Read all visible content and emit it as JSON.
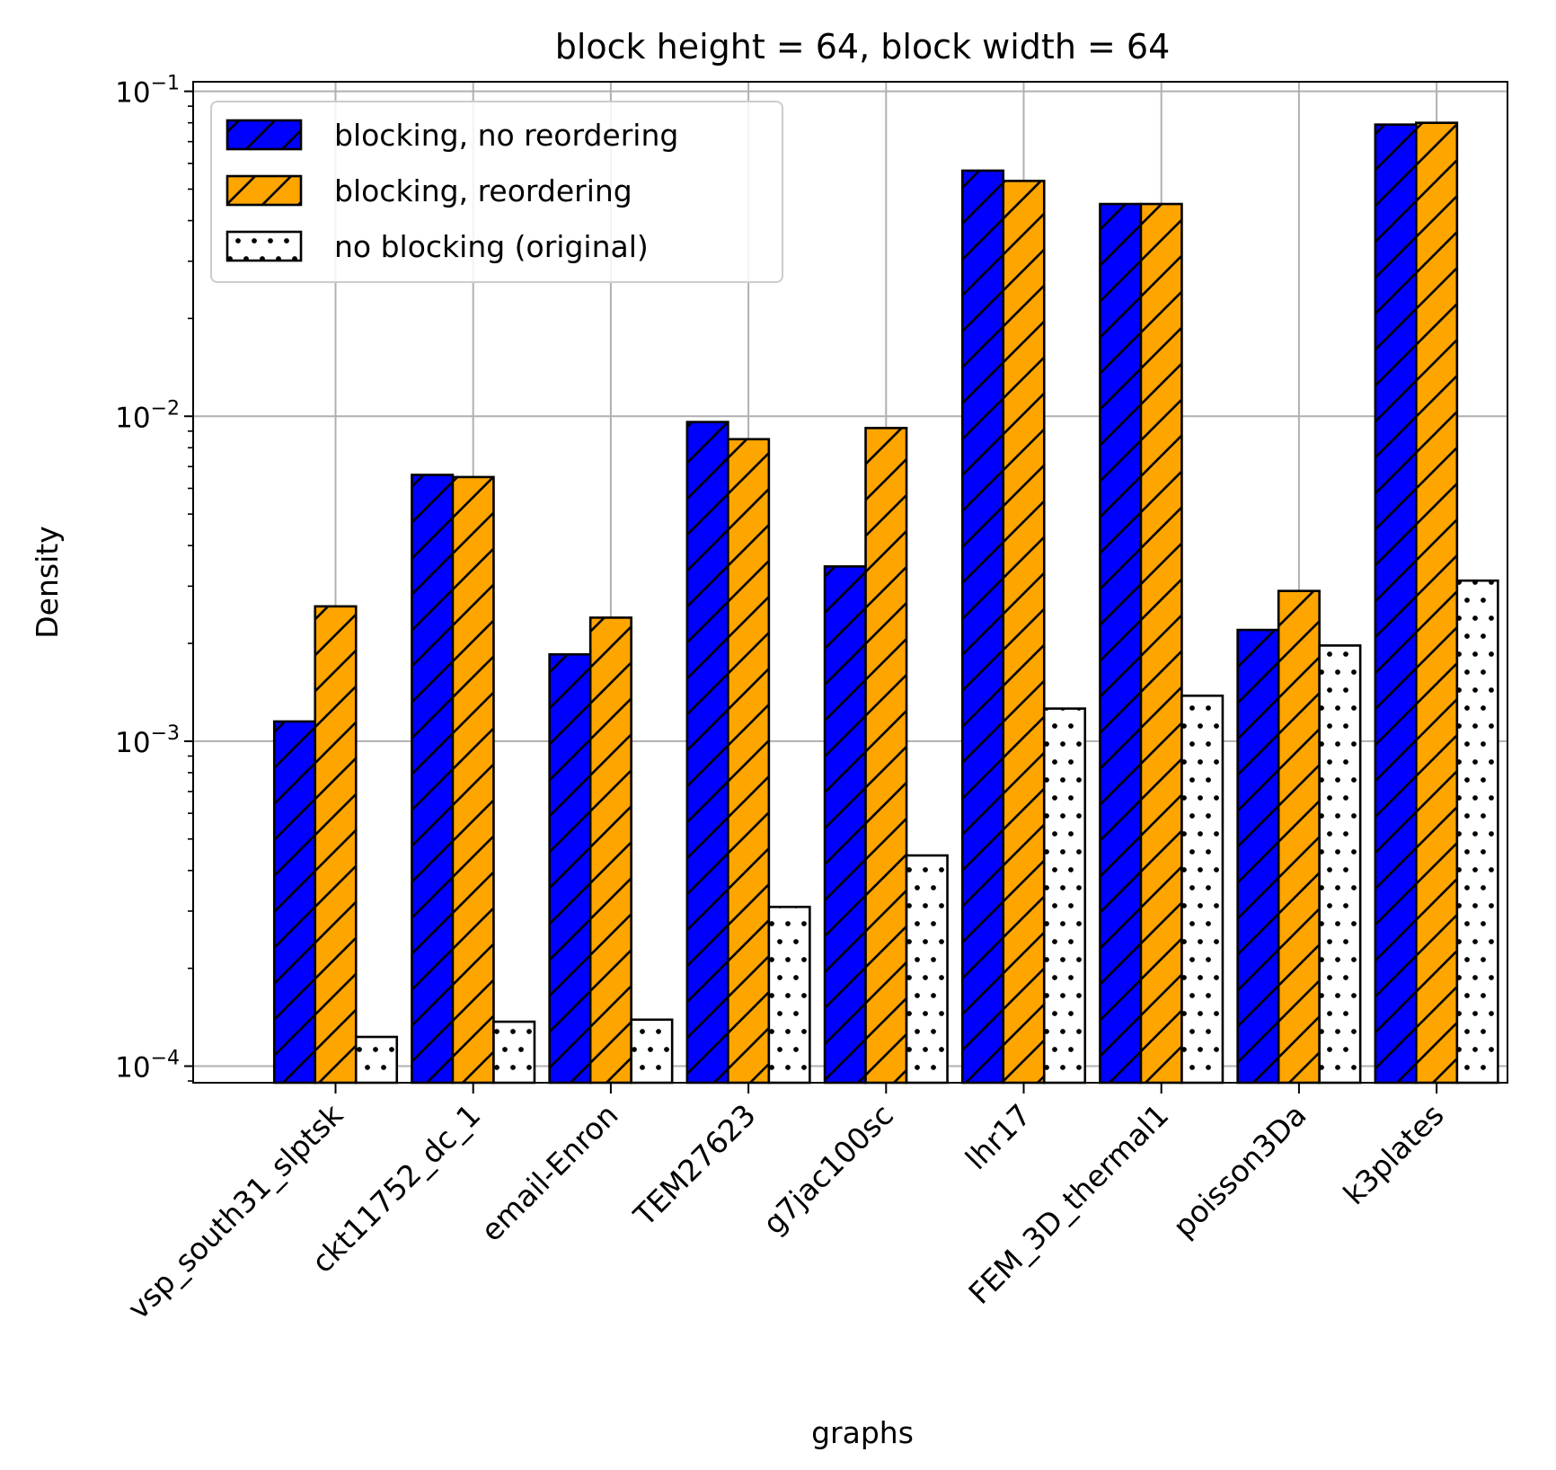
{
  "chart_data": {
    "type": "bar",
    "title": "block height = 64, block width = 64",
    "xlabel": "graphs",
    "ylabel": "Density",
    "yscale": "log",
    "ylim": [
      8.89e-05,
      0.107
    ],
    "ytick_values": [
      0.0001,
      0.001,
      0.01,
      0.1
    ],
    "ytick_labels": [
      {
        "base": "10",
        "exp": "−4"
      },
      {
        "base": "10",
        "exp": "−3"
      },
      {
        "base": "10",
        "exp": "−2"
      },
      {
        "base": "10",
        "exp": "−1"
      }
    ],
    "grid": true,
    "legend_position": "top-left",
    "categories": [
      "vsp_south31_slptsk",
      "ckt11752_dc_1",
      "email-Enron",
      "TEM27623",
      "g7jac100sc",
      "lhr17",
      "FEM_3D_thermal1",
      "poisson3Da",
      "k3plates"
    ],
    "series": [
      {
        "name": "blocking, no reordering",
        "color": "#0000ff",
        "pattern": "hatch",
        "values": [
          0.00115,
          0.0066,
          0.00185,
          0.0096,
          0.00345,
          0.057,
          0.045,
          0.0022,
          0.079
        ]
      },
      {
        "name": "blocking, reordering",
        "color": "#ffa500",
        "pattern": "hatch",
        "values": [
          0.0026,
          0.0065,
          0.0024,
          0.0085,
          0.0092,
          0.053,
          0.045,
          0.0029,
          0.08
        ]
      },
      {
        "name": "no blocking (original)",
        "color": "#ffffff",
        "pattern": "dots",
        "values": [
          0.000123,
          0.000137,
          0.000139,
          0.000309,
          0.000445,
          0.00126,
          0.00138,
          0.00197,
          0.00312
        ]
      }
    ]
  }
}
